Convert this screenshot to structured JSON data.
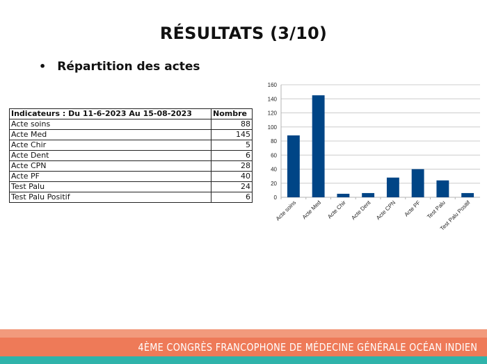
{
  "slide": {
    "title": "RÉSULTATS (3/10)",
    "bullet": "Répartition des actes"
  },
  "table": {
    "header_label": "Indicateurs : Du 11-6-2023 Au 15-08-2023",
    "header_value": "Nombre",
    "rows": [
      {
        "label": "Acte soins",
        "value": "88"
      },
      {
        "label": "Acte Med",
        "value": "145"
      },
      {
        "label": "Acte Chir",
        "value": "5"
      },
      {
        "label": "Acte Dent",
        "value": "6"
      },
      {
        "label": "Acte CPN",
        "value": "28"
      },
      {
        "label": "Acte PF",
        "value": "40"
      },
      {
        "label": "Test Palu",
        "value": "24"
      },
      {
        "label": "Test Palu Positif",
        "value": "6"
      }
    ]
  },
  "chart_data": {
    "type": "bar",
    "categories": [
      "Acte soins",
      "Acte Med",
      "Acte Chir",
      "Acte Dent",
      "Acte CPN",
      "Acte PF",
      "Test Palu",
      "Test Palu Positif"
    ],
    "values": [
      88,
      145,
      5,
      6,
      28,
      40,
      24,
      6
    ],
    "title": "",
    "xlabel": "",
    "ylabel": "",
    "ylim": [
      0,
      160
    ],
    "yticks": [
      "0",
      "20",
      "40",
      "60",
      "80",
      "100",
      "120",
      "140",
      "160"
    ],
    "grid": true,
    "legend": "none",
    "bar_color": "#004586",
    "grid_color": "#cccccc"
  },
  "footer": {
    "text": "4ÈME CONGRÈS FRANCOPHONE DE MÉDECINE GÉNÉRALE OCÉAN INDIEN",
    "colors": [
      "#f29a7c",
      "#ee7a58",
      "#2fb3aa"
    ]
  }
}
